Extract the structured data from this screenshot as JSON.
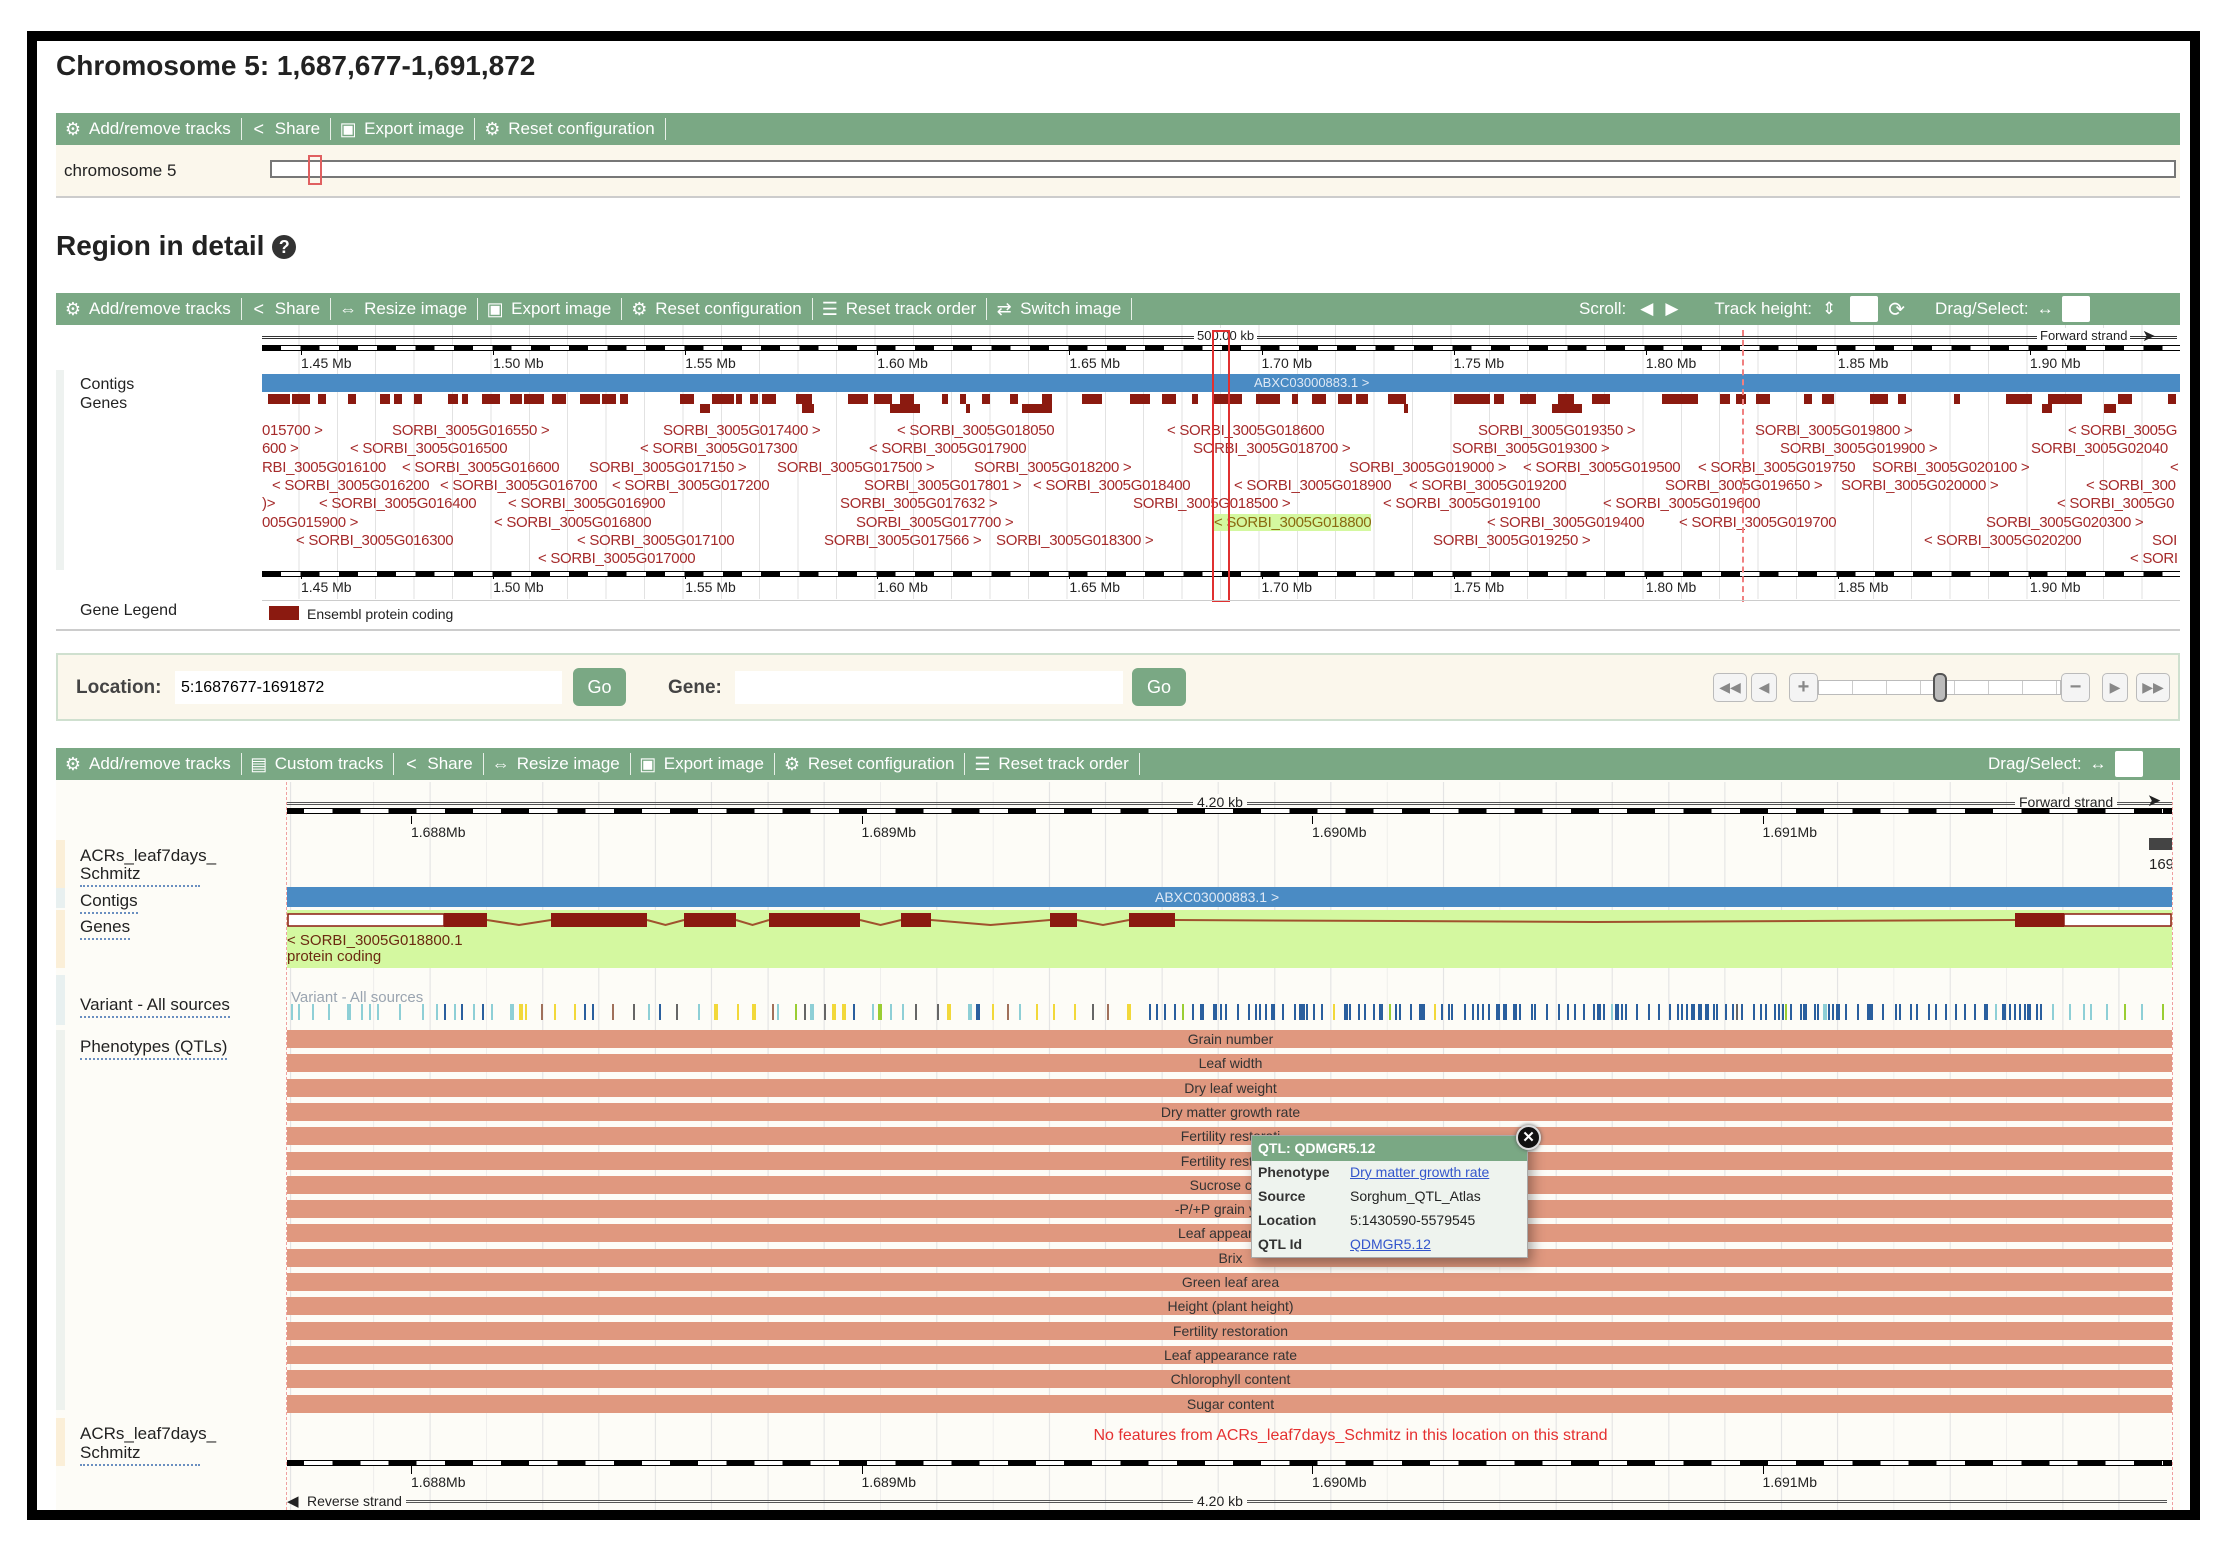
{
  "page_title": "Chromosome 5: 1,687,677-1,691,872",
  "overview": {
    "toolbar": [
      {
        "label": "Add/remove tracks",
        "icon": "gear-icon"
      },
      {
        "label": "Share",
        "icon": "share-icon"
      },
      {
        "label": "Export image",
        "icon": "export-image-icon"
      },
      {
        "label": "Reset configuration",
        "icon": "reset-config-icon"
      }
    ],
    "chromosome_label": "chromosome 5"
  },
  "region": {
    "heading": "Region in detail",
    "toolbar": [
      {
        "label": "Add/remove tracks",
        "icon": "gear-icon"
      },
      {
        "label": "Share",
        "icon": "share-icon"
      },
      {
        "label": "Resize image",
        "icon": "resize-icon"
      },
      {
        "label": "Export image",
        "icon": "export-image-icon"
      },
      {
        "label": "Reset configuration",
        "icon": "reset-config-icon"
      },
      {
        "label": "Reset track order",
        "icon": "reset-order-icon"
      },
      {
        "label": "Switch image",
        "icon": "switch-icon"
      }
    ],
    "scroll_label": "Scroll:",
    "track_height_label": "Track height:",
    "drag_select_label": "Drag/Select:",
    "scale_label": "500.00 kb",
    "strand_label": "Forward strand",
    "ticks": [
      "1.45 Mb",
      "1.50 Mb",
      "1.55 Mb",
      "1.60 Mb",
      "1.65 Mb",
      "1.70 Mb",
      "1.75 Mb",
      "1.80 Mb",
      "1.85 Mb",
      "1.90 Mb"
    ],
    "track_labels": {
      "contigs": "Contigs",
      "genes": "Genes",
      "gene_legend": "Gene Legend"
    },
    "contig_label": "ABXC03000883.1 >",
    "legend_item": "Ensembl protein coding",
    "highlighted_gene": "< SORBI_3005G018800",
    "gene_labels": [
      [
        "015700 >",
        "SORBI_3005G016550 >",
        "SORBI_3005G017400 >",
        "< SORBI_3005G018050",
        "< SORBI_3005G018600",
        "SORBI_3005G019350 >",
        "SORBI_3005G019800 >",
        "< SORBI_3005G"
      ],
      [
        "600 >",
        "< SORBI_3005G016500",
        "< SORBI_3005G017300",
        "< SORBI_3005G017900",
        "SORBI_3005G018700 >",
        "SORBI_3005G019300 >",
        "SORBI_3005G019900 >",
        "SORBI_3005G02040"
      ],
      [
        "RBI_3005G016100",
        "< SORBI_3005G016600",
        "SORBI_3005G017150 >",
        "SORBI_3005G017500 >",
        "SORBI_3005G018200 >",
        "SORBI_3005G019000 >",
        "< SORBI_3005G019500",
        "< SORBI_3005G019750",
        "SORBI_3005G020100 >",
        "<"
      ],
      [
        "< SORBI_3005G016200",
        "< SORBI_3005G016700",
        "< SORBI_3005G017200",
        "SORBI_3005G017801 >",
        "< SORBI_3005G018400",
        "< SORBI_3005G018900",
        "< SORBI_3005G019200",
        "SORBI_3005G019650 >",
        "SORBI_3005G020000 >",
        "< SORBI_300"
      ],
      [
        ")>",
        "< SORBI_3005G016400",
        "< SORBI_3005G016900",
        "SORBI_3005G017632 >",
        "SORBI_3005G018500 >",
        "< SORBI_3005G019100",
        "< SORBI_3005G019600",
        "< SORBI_3005G0"
      ],
      [
        "005G015900 >",
        "< SORBI_3005G016800",
        "SORBI_3005G017700 >",
        "< SORBI_3005G019400",
        "< SORBI_3005G019700",
        "SORBI_3005G020300 >"
      ],
      [
        "< SORBI_3005G016300",
        "< SORBI_3005G017100",
        "SORBI_3005G017566 >",
        "SORBI_3005G018300 >",
        "SORBI_3005G019250 >",
        "< SORBI_3005G020200",
        "SOI"
      ],
      [
        "< SORBI_3005G017000",
        "< SORI"
      ]
    ]
  },
  "location": {
    "location_label": "Location:",
    "location_value": "5:1687677-1691872",
    "go_label": "Go",
    "gene_label": "Gene:",
    "gene_value": "",
    "zoom_level": 0.5
  },
  "detail": {
    "toolbar": [
      {
        "label": "Add/remove tracks",
        "icon": "gear-icon"
      },
      {
        "label": "Custom tracks",
        "icon": "custom-tracks-icon"
      },
      {
        "label": "Share",
        "icon": "share-icon"
      },
      {
        "label": "Resize image",
        "icon": "resize-icon"
      },
      {
        "label": "Export image",
        "icon": "export-image-icon"
      },
      {
        "label": "Reset configuration",
        "icon": "reset-config-icon"
      },
      {
        "label": "Reset track order",
        "icon": "reset-order-icon"
      }
    ],
    "drag_select_label": "Drag/Select:",
    "scale_label": "4.20 kb",
    "forward_strand": "Forward strand",
    "reverse_strand": "Reverse strand",
    "ticks": [
      "1.688Mb",
      "1.689Mb",
      "1.690Mb",
      "1.691Mb"
    ],
    "track_labels": {
      "acrs_line1": "ACRs_leaf7days_",
      "acrs_line2": "Schmitz",
      "contigs": "Contigs",
      "genes": "Genes",
      "variants": "Variant - All sources",
      "phenotypes": "Phenotypes (QTLs)"
    },
    "acr_feature_label": "169",
    "contig_label": "ABXC03000883.1 >",
    "transcript_label": "< SORBI_3005G018800.1",
    "transcript_biotype": "protein coding",
    "variant_track_title": "Variant - All sources",
    "qtls": [
      "Grain number",
      "Leaf width",
      "Dry leaf weight",
      "Dry matter growth rate",
      "Fertility restorati",
      "Fertility restorati",
      "Sucrose cont",
      "-P/+P grain yield r",
      "Leaf appearance",
      "Brix",
      "Green leaf area",
      "Height (plant height)",
      "Fertility restoration",
      "Leaf appearance rate",
      "Chlorophyll content",
      "Sugar content"
    ],
    "no_features_message": "No features from ACRs_leaf7days_Schmitz in this location on this strand",
    "popup": {
      "title": "QTL: QDMGR5.12",
      "rows": [
        {
          "key": "Phenotype",
          "value": "Dry matter growth rate",
          "link": true
        },
        {
          "key": "Source",
          "value": "Sorghum_QTL_Atlas",
          "link": false
        },
        {
          "key": "Location",
          "value": "5:1430590-5579545",
          "link": false
        },
        {
          "key": "QTL Id",
          "value": "QDMGR5.12",
          "link": true
        }
      ]
    }
  },
  "colors": {
    "toolbar": "#7aa884",
    "contig": "#4a8bc4",
    "gene": "#8b1a10",
    "gene_highlight": "#d4f8a0",
    "qtl": "#e0987f",
    "selection": "#e03030"
  }
}
